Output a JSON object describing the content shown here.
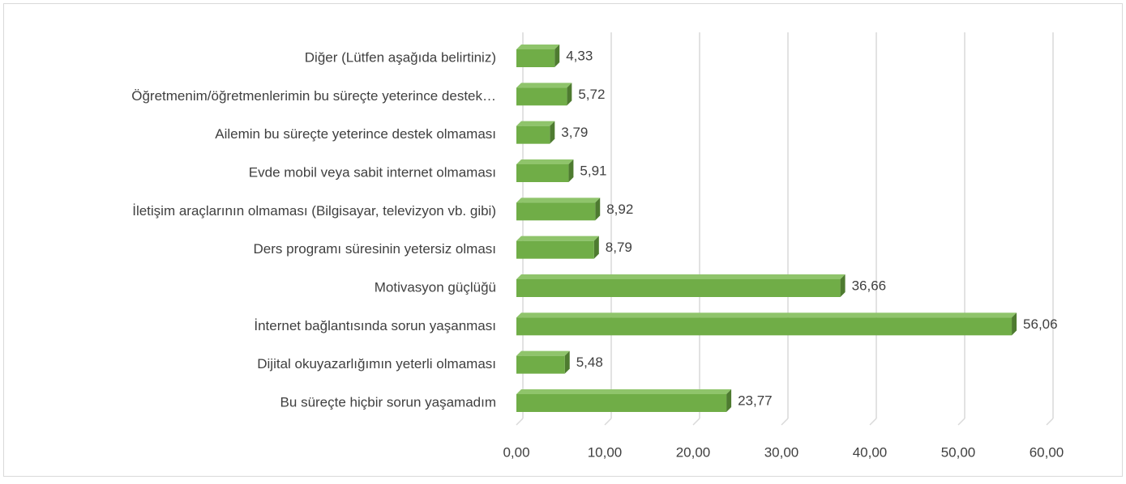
{
  "chart_data": {
    "type": "bar3d_horizontal",
    "categories": [
      "Diğer (Lütfen aşağıda belirtiniz)",
      "Öğretmenim/öğretmenlerimin bu süreçte yeterince destek…",
      "Ailemin bu süreçte yeterince destek olmaması",
      "Evde mobil veya sabit internet olmaması",
      "İletişim araçlarının olmaması (Bilgisayar, televizyon vb. gibi)",
      "Ders programı süresinin yetersiz olması",
      "Motivasyon güçlüğü",
      "İnternet bağlantısında sorun yaşanması",
      "Dijital okuyazarlığımın yeterli olmaması",
      "Bu süreçte hiçbir sorun yaşamadım"
    ],
    "values": [
      4.33,
      5.72,
      3.79,
      5.91,
      8.92,
      8.79,
      36.66,
      56.06,
      5.48,
      23.77
    ],
    "value_labels": [
      "4,33",
      "5,72",
      "3,79",
      "5,91",
      "8,92",
      "8,79",
      "36,66",
      "56,06",
      "5,48",
      "23,77"
    ],
    "color": "#70ad47",
    "xlim": [
      0,
      60
    ],
    "xticks": [
      {
        "value": 0,
        "label": "0,00"
      },
      {
        "value": 10,
        "label": "10,00"
      },
      {
        "value": 20,
        "label": "20,00"
      },
      {
        "value": 30,
        "label": "30,00"
      },
      {
        "value": 40,
        "label": "40,00"
      },
      {
        "value": 50,
        "label": "50,00"
      },
      {
        "value": 60,
        "label": "60,00"
      }
    ],
    "grid": true
  }
}
